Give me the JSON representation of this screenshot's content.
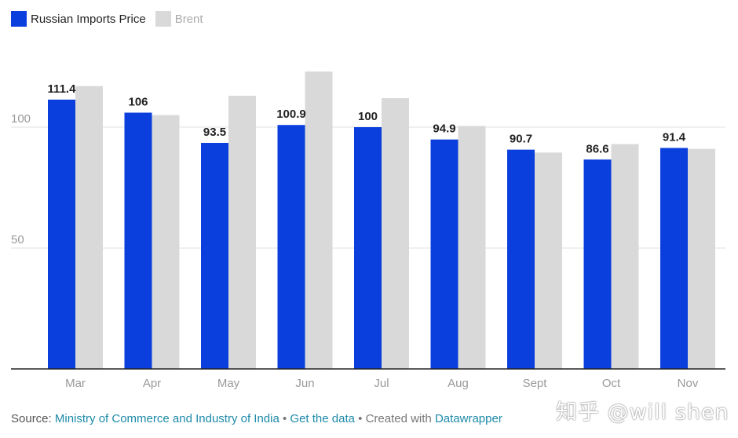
{
  "chart_data": {
    "type": "bar",
    "categories": [
      "Mar",
      "Apr",
      "May",
      "Jun",
      "Jul",
      "Aug",
      "Sept",
      "Oct",
      "Nov"
    ],
    "series": [
      {
        "name": "Russian Imports Price",
        "color": "#0a3fdd",
        "values": [
          111.4,
          106,
          93.5,
          100.9,
          100,
          94.9,
          90.7,
          86.6,
          91.4
        ],
        "labels": [
          "111.4",
          "106",
          "93.5",
          "100.9",
          "100",
          "94.9",
          "90.7",
          "86.6",
          "91.4"
        ]
      },
      {
        "name": "Brent",
        "color": "#d9d9d9",
        "values": [
          117,
          105,
          113,
          123,
          112,
          100.5,
          89.5,
          93,
          91
        ]
      }
    ],
    "yticks": [
      50,
      100
    ],
    "ytick_labels": [
      "50",
      "100"
    ],
    "ylim": [
      0,
      125
    ],
    "grid": true,
    "legend": "top-left"
  },
  "footer": {
    "source_prefix": "Source: ",
    "source_link": "Ministry of Commerce and Industry of India",
    "sep1": " • ",
    "get_data": "Get the data",
    "sep2": " • Created with ",
    "datawrapper": "Datawrapper"
  },
  "watermark": "知乎 @will shen"
}
